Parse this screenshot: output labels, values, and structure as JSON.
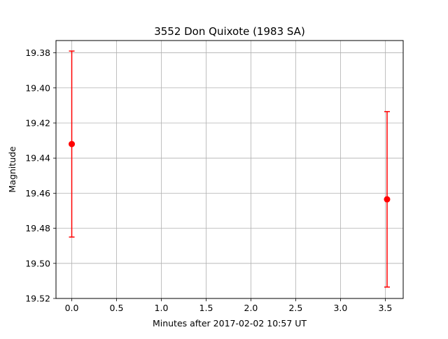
{
  "chart_data": {
    "type": "scatter",
    "title": "3552 Don Quixote (1983 SA)",
    "xlabel": "Minutes after 2017-02-02 10:57 UT",
    "ylabel": "Magnitude",
    "y_inverted": true,
    "grid": true,
    "xlim": [
      -0.176,
      3.7
    ],
    "ylim": [
      19.52,
      19.373
    ],
    "xticks": [
      0.0,
      0.5,
      1.0,
      1.5,
      2.0,
      2.5,
      3.0,
      3.5
    ],
    "xtick_labels": [
      "0.0",
      "0.5",
      "1.0",
      "1.5",
      "2.0",
      "2.5",
      "3.0",
      "3.5"
    ],
    "yticks": [
      19.38,
      19.4,
      19.42,
      19.44,
      19.46,
      19.48,
      19.5,
      19.52
    ],
    "ytick_labels": [
      "19.38",
      "19.40",
      "19.42",
      "19.44",
      "19.46",
      "19.48",
      "19.50",
      "19.52"
    ],
    "series": [
      {
        "color": "#ff0000",
        "marker": "circle",
        "points": [
          {
            "x": 0.0,
            "y": 19.432,
            "yerr_low": 19.379,
            "yerr_high": 19.485
          },
          {
            "x": 3.52,
            "y": 19.4635,
            "yerr_low": 19.4135,
            "yerr_high": 19.5135
          }
        ]
      }
    ]
  }
}
